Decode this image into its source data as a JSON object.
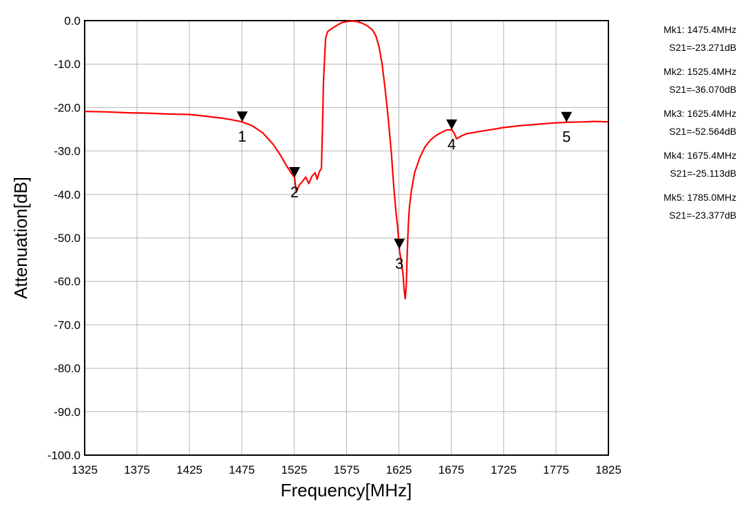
{
  "chart_data": {
    "type": "line",
    "title": "",
    "xlabel": "Frequency[MHz]",
    "ylabel": "Attenuation[dB]",
    "xlim": [
      1325,
      1825
    ],
    "ylim": [
      -100,
      0
    ],
    "x_ticks": [
      "1325",
      "1375",
      "1425",
      "1475",
      "1525",
      "1575",
      "1625",
      "1675",
      "1725",
      "1775",
      "1825"
    ],
    "y_ticks": [
      "0.0",
      "-10.0",
      "-20.0",
      "-30.0",
      "-40.0",
      "-50.0",
      "-60.0",
      "-70.0",
      "-80.0",
      "-90.0",
      "-100.0"
    ],
    "grid": true,
    "series_color": "#ff0000",
    "series": [
      {
        "x": [
          1325,
          1345,
          1365,
          1385,
          1405,
          1425,
          1440,
          1455,
          1465,
          1475.4,
          1485,
          1495,
          1505,
          1512,
          1518,
          1522,
          1525.4,
          1527,
          1530,
          1533,
          1536,
          1539,
          1542,
          1545,
          1547,
          1549,
          1551,
          1552,
          1553,
          1555,
          1557,
          1560,
          1565,
          1570,
          1575,
          1580,
          1585,
          1590,
          1595,
          1600,
          1603,
          1606,
          1609,
          1612,
          1615,
          1618,
          1620,
          1622,
          1624,
          1625.4,
          1627,
          1629,
          1630,
          1631,
          1632,
          1633,
          1634,
          1635,
          1637,
          1640,
          1645,
          1650,
          1655,
          1660,
          1665,
          1670,
          1675.4,
          1678,
          1680,
          1685,
          1690,
          1700,
          1710,
          1725,
          1740,
          1755,
          1770,
          1785,
          1800,
          1812,
          1825
        ],
        "y": [
          -20.9,
          -21.0,
          -21.2,
          -21.3,
          -21.5,
          -21.6,
          -22.0,
          -22.4,
          -22.8,
          -23.3,
          -24.2,
          -25.8,
          -28.5,
          -31.0,
          -33.5,
          -35.0,
          -36.1,
          -39.5,
          -37.8,
          -37.0,
          -36.0,
          -37.5,
          -35.8,
          -35.0,
          -36.5,
          -34.8,
          -34.0,
          -25.0,
          -14.0,
          -4.0,
          -2.5,
          -2.0,
          -1.2,
          -0.5,
          -0.2,
          -0.1,
          -0.2,
          -0.6,
          -1.2,
          -2.2,
          -3.5,
          -6.0,
          -10.0,
          -16.0,
          -23.0,
          -31.0,
          -38.0,
          -43.5,
          -48.0,
          -52.6,
          -55.0,
          -58.5,
          -62.0,
          -64.0,
          -61.0,
          -53.0,
          -47.0,
          -43.0,
          -39.0,
          -35.0,
          -31.5,
          -29.0,
          -27.5,
          -26.5,
          -25.8,
          -25.2,
          -25.1,
          -26.0,
          -27.2,
          -26.5,
          -26.0,
          -25.6,
          -25.2,
          -24.6,
          -24.2,
          -23.9,
          -23.6,
          -23.4,
          -23.3,
          -23.2,
          -23.3
        ]
      }
    ],
    "markers": [
      {
        "label": "1",
        "x": 1475.4,
        "y": -23.271
      },
      {
        "label": "2",
        "x": 1525.4,
        "y": -36.07
      },
      {
        "label": "3",
        "x": 1625.4,
        "y": -52.564
      },
      {
        "label": "4",
        "x": 1675.4,
        "y": -25.113
      },
      {
        "label": "5",
        "x": 1785.0,
        "y": -23.377
      }
    ]
  },
  "marker_readouts": [
    {
      "freq": "Mk1: 1475.4MHz",
      "value": "S21=-23.271dB"
    },
    {
      "freq": "Mk2: 1525.4MHz",
      "value": "S21=-36.070dB"
    },
    {
      "freq": "Mk3: 1625.4MHz",
      "value": "S21=-52.564dB"
    },
    {
      "freq": "Mk4: 1675.4MHz",
      "value": "S21=-25.113dB"
    },
    {
      "freq": "Mk5: 1785.0MHz",
      "value": "S21=-23.377dB"
    }
  ]
}
